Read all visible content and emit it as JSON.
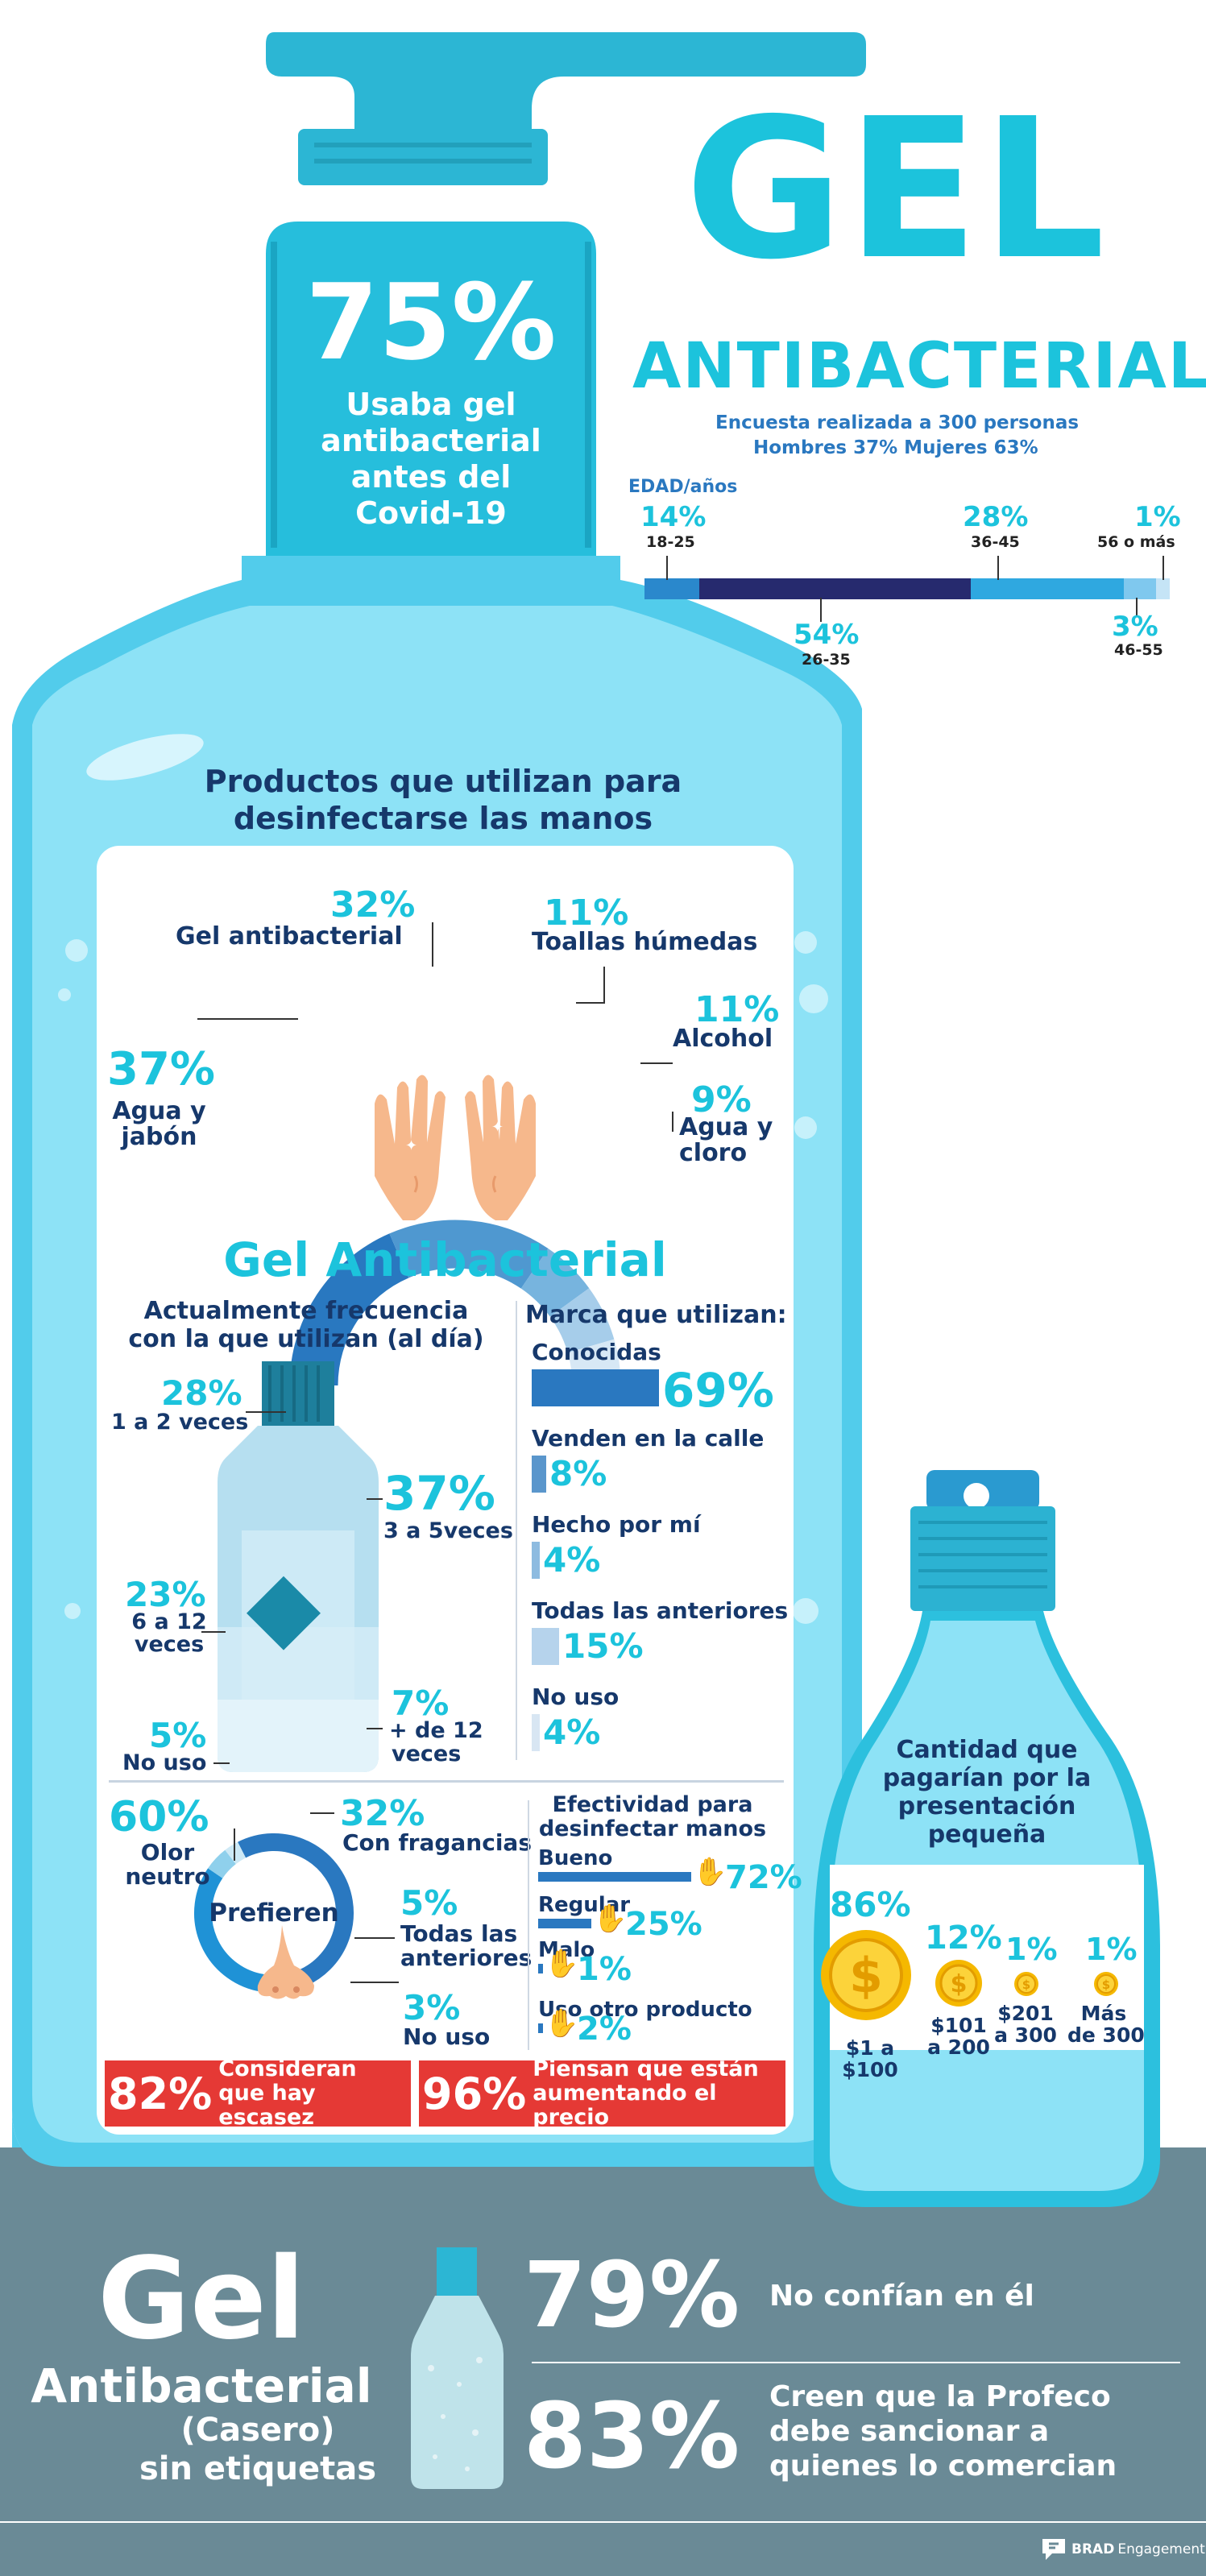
{
  "colors": {
    "cyan": "#1cc3dc",
    "navy": "#16386b",
    "bottle": "#4fd0ee",
    "bottle_light": "#8ee3f6",
    "red": "#e53935",
    "slate": "#6a8a96",
    "blue_dark": "#1a5fa6",
    "blue": "#2f86c7"
  },
  "header": {
    "title_big": "GEL",
    "title_sub": "ANTIBACTERIAL",
    "survey_line": "Encuesta realizada a 300 personas",
    "gender_line": "Hombres 37%  Mujeres 63%",
    "age_title": "EDAD/años",
    "age_groups": [
      {
        "pct": "14%",
        "range": "18-25",
        "share": 14,
        "color": "#2a88cc"
      },
      {
        "pct": "54%",
        "range": "26-35",
        "share": 54,
        "color": "#262a6e"
      },
      {
        "pct": "28%",
        "range": "36-45",
        "share": 28,
        "color": "#2fa8e0"
      },
      {
        "pct": "3%",
        "range": "46-55",
        "share": 3,
        "color": "#7fc8ee"
      },
      {
        "pct": "1%",
        "range": "56 o más",
        "share": 1,
        "color": "#c5e4f6"
      }
    ]
  },
  "neck": {
    "pct": "75%",
    "line1": "Usaba gel",
    "line2": "antibacterial",
    "line3": "antes del",
    "line4": "Covid-19"
  },
  "products": {
    "title1": "Productos que utilizan para",
    "title2": "desinfectarse las manos",
    "items": [
      {
        "pct": "37%",
        "label1": "Agua y",
        "label2": "jabón",
        "share": 37,
        "color": "#2978c0"
      },
      {
        "pct": "32%",
        "label1": "Gel antibacterial",
        "label2": "",
        "share": 32,
        "color": "#4f98d0"
      },
      {
        "pct": "11%",
        "label1": "Toallas húmedas",
        "label2": "",
        "share": 11,
        "color": "#77b4de"
      },
      {
        "pct": "11%",
        "label1": "Alcohol",
        "label2": "",
        "share": 11,
        "color": "#a6cdea"
      },
      {
        "pct": "9%",
        "label1": "Agua y",
        "label2": "cloro",
        "share": 9,
        "color": "#d7e8f5"
      }
    ]
  },
  "gel_section": {
    "title": "Gel Antibacterial",
    "freq_title1": "Actualmente frecuencia",
    "freq_title2": "con la que utilizan (al día)",
    "freq": [
      {
        "pct": "28%",
        "label1": "1 a 2 veces",
        "label2": ""
      },
      {
        "pct": "37%",
        "label1": "3 a 5veces",
        "label2": ""
      },
      {
        "pct": "23%",
        "label1": "6 a 12",
        "label2": "veces"
      },
      {
        "pct": "7%",
        "label1": "+ de 12",
        "label2": "veces"
      },
      {
        "pct": "5%",
        "label1": "No uso",
        "label2": ""
      }
    ],
    "brand_title": "Marca que utilizan:",
    "brands": [
      {
        "label": "Conocidas",
        "pct": "69%",
        "value": 69
      },
      {
        "label": "Venden en la calle",
        "pct": "8%",
        "value": 8
      },
      {
        "label": "Hecho por mí",
        "pct": "4%",
        "value": 4
      },
      {
        "label": "Todas las anteriores",
        "pct": "15%",
        "value": 15
      },
      {
        "label": "No uso",
        "pct": "4%",
        "value": 4
      }
    ]
  },
  "prefer": {
    "center": "Prefieren",
    "items": [
      {
        "pct": "60%",
        "label1": "Olor",
        "label2": "neutro",
        "share": 60
      },
      {
        "pct": "32%",
        "label1": "Con fragancias",
        "label2": "",
        "share": 32
      },
      {
        "pct": "5%",
        "label1": "Todas las",
        "label2": "anteriores",
        "share": 5
      },
      {
        "pct": "3%",
        "label1": "No uso",
        "label2": "",
        "share": 3
      }
    ]
  },
  "effect": {
    "title1": "Efectividad para",
    "title2": "desinfectar manos",
    "items": [
      {
        "label": "Bueno",
        "pct": "72%",
        "value": 72
      },
      {
        "label": "Regular",
        "pct": "25%",
        "value": 25
      },
      {
        "label": "Malo",
        "pct": "1%",
        "value": 1
      },
      {
        "label": "Uso otro producto",
        "pct": "2%",
        "value": 2
      }
    ]
  },
  "banners": [
    {
      "pct": "82%",
      "text1": "Consideran",
      "text2": "que hay escasez"
    },
    {
      "pct": "96%",
      "text1": "Piensan que están",
      "text2": "aumentando el precio"
    }
  ],
  "small_bottle": {
    "title1": "Cantidad que",
    "title2": "pagarían por la",
    "title3": "presentación",
    "title4": "pequeña",
    "items": [
      {
        "pct": "86%",
        "label1": "$1 a",
        "label2": "$100",
        "coin": "coin-icon-large"
      },
      {
        "pct": "12%",
        "label1": "$101",
        "label2": "a 200",
        "coin": "coin-icon-medium"
      },
      {
        "pct": "1%",
        "label1": "$201",
        "label2": "a 300",
        "coin": "coin-icon-small"
      },
      {
        "pct": "1%",
        "label1": "Más",
        "label2": "de 300",
        "coin": "coin-icon-small"
      }
    ]
  },
  "footer": {
    "title1": "Gel",
    "title2": "Antibacterial",
    "title3": "(Casero)",
    "title4": "sin etiquetas",
    "stats": [
      {
        "pct": "79%",
        "text1": "No confían en él",
        "text2": ""
      },
      {
        "pct": "83%",
        "text1": "Creen que la Profeco",
        "text2": "debe sancionar a",
        "text3": "quienes  lo comercian"
      }
    ],
    "brand_name": "BRAD",
    "brand_sub": "Engagement"
  }
}
